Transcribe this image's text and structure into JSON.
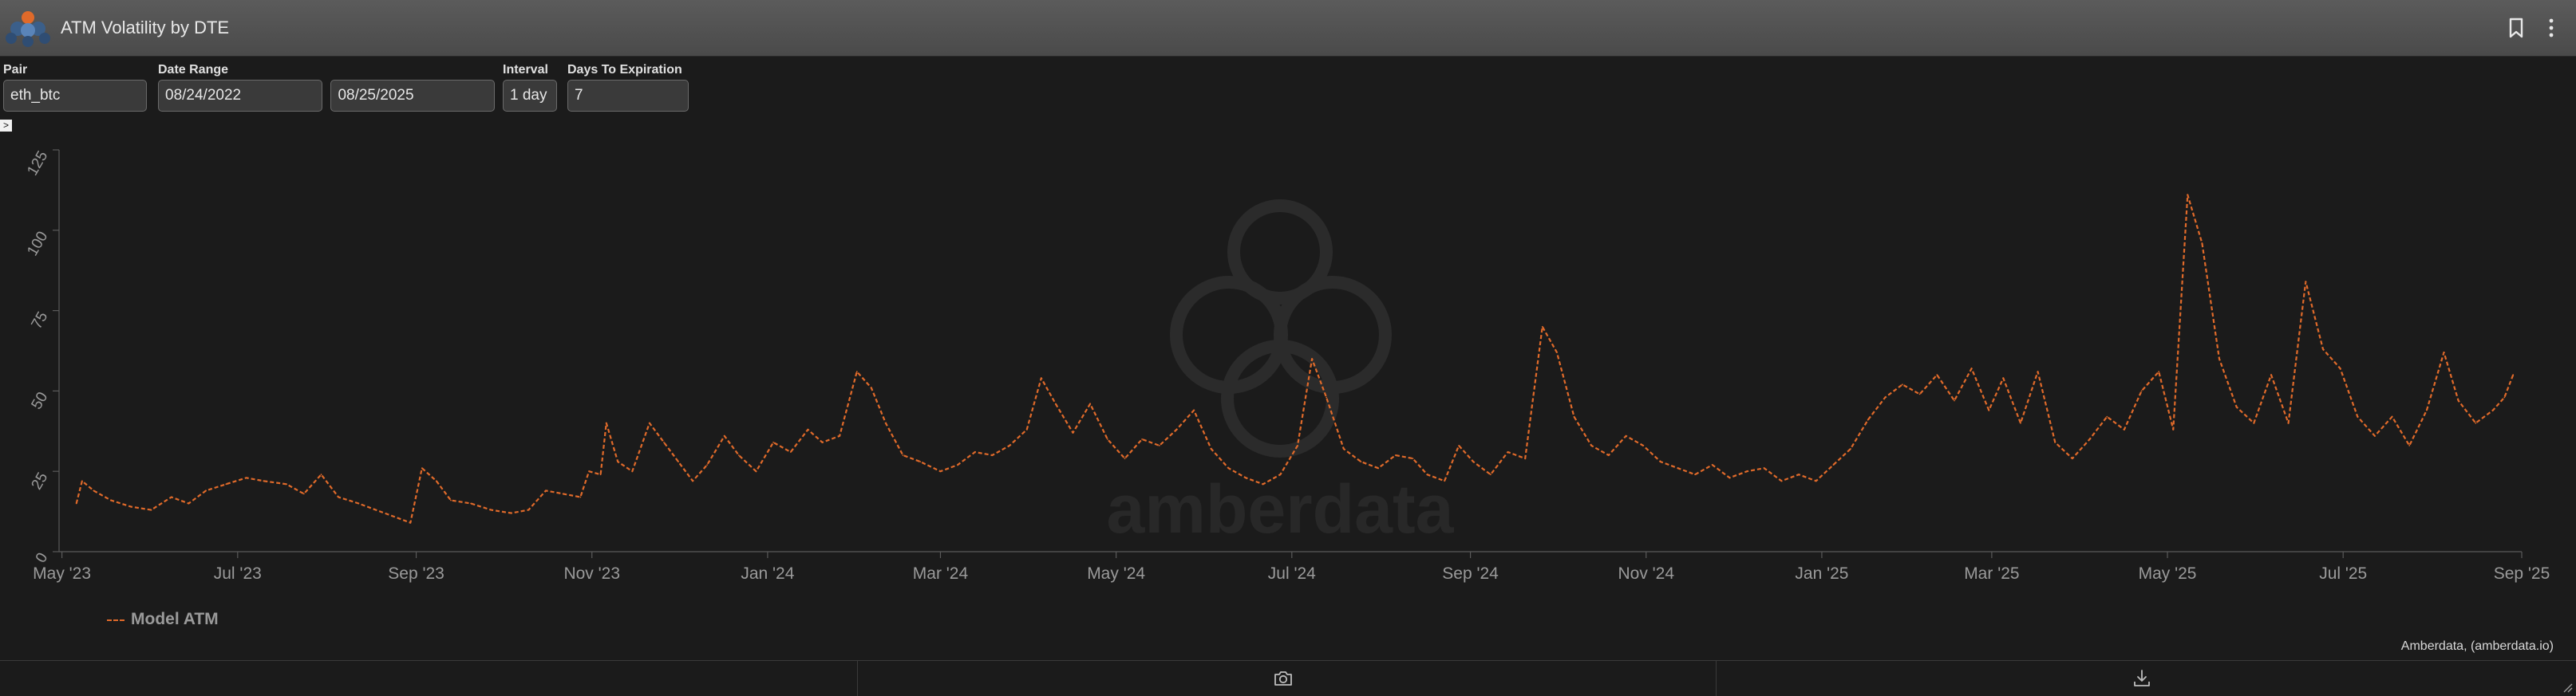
{
  "window": {
    "title": "ATM Volatility by DTE",
    "logo_icon": "amberdata-logo",
    "bookmark_icon": "bookmark-icon",
    "menu_icon": "more-vertical-icon"
  },
  "filters": {
    "pair_label": "Pair",
    "pair_value": "eth_btc",
    "date_range_label": "Date Range",
    "date_start": "08/24/2022",
    "date_end": "08/25/2025",
    "interval_label": "Interval",
    "interval_value": "1 day",
    "dte_label": "Days To Expiration",
    "dte_value": "7"
  },
  "expander_glyph": ">",
  "watermark": "amberdata",
  "credit": "Amberdata, (amberdata.io)",
  "footer": {
    "camera_icon": "camera-icon",
    "download_icon": "download-icon"
  },
  "colors": {
    "series": "#e06a2a",
    "background": "#1b1b1b",
    "titlebar": "#4f4f4f"
  },
  "chart_data": {
    "type": "line",
    "title": "",
    "xlabel": "",
    "ylabel": "",
    "ylim": [
      0,
      125
    ],
    "yticks": [
      0,
      25,
      50,
      75,
      100,
      125
    ],
    "xlim": [
      "2023-04-30",
      "2025-09-01"
    ],
    "xticks": [
      {
        "date": "2023-05-01",
        "label": "May '23"
      },
      {
        "date": "2023-07-01",
        "label": "Jul '23"
      },
      {
        "date": "2023-09-01",
        "label": "Sep '23"
      },
      {
        "date": "2023-11-01",
        "label": "Nov '23"
      },
      {
        "date": "2024-01-01",
        "label": "Jan '24"
      },
      {
        "date": "2024-03-01",
        "label": "Mar '24"
      },
      {
        "date": "2024-05-01",
        "label": "May '24"
      },
      {
        "date": "2024-07-01",
        "label": "Jul '24"
      },
      {
        "date": "2024-09-01",
        "label": "Sep '24"
      },
      {
        "date": "2024-11-01",
        "label": "Nov '24"
      },
      {
        "date": "2025-01-01",
        "label": "Jan '25"
      },
      {
        "date": "2025-03-01",
        "label": "Mar '25"
      },
      {
        "date": "2025-05-01",
        "label": "May '25"
      },
      {
        "date": "2025-07-01",
        "label": "Jul '25"
      },
      {
        "date": "2025-09-01",
        "label": "Sep '25"
      }
    ],
    "grid": false,
    "legend": "bottom-left",
    "series": [
      {
        "name": "Model ATM",
        "style": "dashed",
        "color": "#e06a2a",
        "points": [
          [
            "2023-05-06",
            15
          ],
          [
            "2023-05-08",
            22
          ],
          [
            "2023-05-12",
            19
          ],
          [
            "2023-05-18",
            16
          ],
          [
            "2023-05-25",
            14
          ],
          [
            "2023-06-01",
            13
          ],
          [
            "2023-06-08",
            17
          ],
          [
            "2023-06-14",
            15
          ],
          [
            "2023-06-20",
            19
          ],
          [
            "2023-06-27",
            21
          ],
          [
            "2023-07-04",
            23
          ],
          [
            "2023-07-10",
            22
          ],
          [
            "2023-07-18",
            21
          ],
          [
            "2023-07-24",
            18
          ],
          [
            "2023-07-30",
            24
          ],
          [
            "2023-08-05",
            17
          ],
          [
            "2023-08-12",
            15
          ],
          [
            "2023-08-18",
            13
          ],
          [
            "2023-08-24",
            11
          ],
          [
            "2023-08-30",
            9
          ],
          [
            "2023-09-03",
            26
          ],
          [
            "2023-09-08",
            22
          ],
          [
            "2023-09-13",
            16
          ],
          [
            "2023-09-20",
            15
          ],
          [
            "2023-09-27",
            13
          ],
          [
            "2023-10-04",
            12
          ],
          [
            "2023-10-10",
            13
          ],
          [
            "2023-10-16",
            19
          ],
          [
            "2023-10-22",
            18
          ],
          [
            "2023-10-28",
            17
          ],
          [
            "2023-10-31",
            25
          ],
          [
            "2023-11-04",
            24
          ],
          [
            "2023-11-06",
            40
          ],
          [
            "2023-11-10",
            28
          ],
          [
            "2023-11-15",
            25
          ],
          [
            "2023-11-21",
            40
          ],
          [
            "2023-11-26",
            34
          ],
          [
            "2023-12-01",
            28
          ],
          [
            "2023-12-06",
            22
          ],
          [
            "2023-12-11",
            27
          ],
          [
            "2023-12-17",
            36
          ],
          [
            "2023-12-22",
            30
          ],
          [
            "2023-12-28",
            25
          ],
          [
            "2024-01-03",
            34
          ],
          [
            "2024-01-09",
            31
          ],
          [
            "2024-01-15",
            38
          ],
          [
            "2024-01-20",
            34
          ],
          [
            "2024-01-26",
            36
          ],
          [
            "2024-02-01",
            56
          ],
          [
            "2024-02-06",
            51
          ],
          [
            "2024-02-11",
            40
          ],
          [
            "2024-02-17",
            30
          ],
          [
            "2024-02-23",
            28
          ],
          [
            "2024-03-01",
            25
          ],
          [
            "2024-03-07",
            27
          ],
          [
            "2024-03-13",
            31
          ],
          [
            "2024-03-19",
            30
          ],
          [
            "2024-03-25",
            33
          ],
          [
            "2024-03-31",
            38
          ],
          [
            "2024-04-05",
            54
          ],
          [
            "2024-04-10",
            46
          ],
          [
            "2024-04-16",
            37
          ],
          [
            "2024-04-22",
            46
          ],
          [
            "2024-04-28",
            35
          ],
          [
            "2024-05-04",
            29
          ],
          [
            "2024-05-10",
            35
          ],
          [
            "2024-05-16",
            33
          ],
          [
            "2024-05-22",
            38
          ],
          [
            "2024-05-28",
            44
          ],
          [
            "2024-06-03",
            32
          ],
          [
            "2024-06-09",
            26
          ],
          [
            "2024-06-15",
            23
          ],
          [
            "2024-06-21",
            21
          ],
          [
            "2024-06-27",
            24
          ],
          [
            "2024-07-03",
            33
          ],
          [
            "2024-07-08",
            60
          ],
          [
            "2024-07-13",
            48
          ],
          [
            "2024-07-19",
            32
          ],
          [
            "2024-07-25",
            28
          ],
          [
            "2024-07-31",
            26
          ],
          [
            "2024-08-06",
            30
          ],
          [
            "2024-08-12",
            29
          ],
          [
            "2024-08-17",
            24
          ],
          [
            "2024-08-23",
            22
          ],
          [
            "2024-08-28",
            33
          ],
          [
            "2024-09-02",
            28
          ],
          [
            "2024-09-08",
            24
          ],
          [
            "2024-09-14",
            31
          ],
          [
            "2024-09-20",
            29
          ],
          [
            "2024-09-26",
            70
          ],
          [
            "2024-10-01",
            62
          ],
          [
            "2024-10-07",
            42
          ],
          [
            "2024-10-13",
            33
          ],
          [
            "2024-10-19",
            30
          ],
          [
            "2024-10-25",
            36
          ],
          [
            "2024-10-31",
            33
          ],
          [
            "2024-11-06",
            28
          ],
          [
            "2024-11-12",
            26
          ],
          [
            "2024-11-18",
            24
          ],
          [
            "2024-11-24",
            27
          ],
          [
            "2024-11-30",
            23
          ],
          [
            "2024-12-06",
            25
          ],
          [
            "2024-12-12",
            26
          ],
          [
            "2024-12-18",
            22
          ],
          [
            "2024-12-24",
            24
          ],
          [
            "2024-12-30",
            22
          ],
          [
            "2025-01-05",
            27
          ],
          [
            "2025-01-11",
            32
          ],
          [
            "2025-01-17",
            41
          ],
          [
            "2025-01-23",
            48
          ],
          [
            "2025-01-29",
            52
          ],
          [
            "2025-02-04",
            49
          ],
          [
            "2025-02-10",
            55
          ],
          [
            "2025-02-16",
            47
          ],
          [
            "2025-02-22",
            57
          ],
          [
            "2025-02-28",
            44
          ],
          [
            "2025-03-05",
            54
          ],
          [
            "2025-03-11",
            40
          ],
          [
            "2025-03-17",
            56
          ],
          [
            "2025-03-23",
            34
          ],
          [
            "2025-03-29",
            29
          ],
          [
            "2025-04-04",
            35
          ],
          [
            "2025-04-10",
            42
          ],
          [
            "2025-04-16",
            38
          ],
          [
            "2025-04-22",
            50
          ],
          [
            "2025-04-28",
            56
          ],
          [
            "2025-05-03",
            38
          ],
          [
            "2025-05-08",
            111
          ],
          [
            "2025-05-13",
            96
          ],
          [
            "2025-05-19",
            60
          ],
          [
            "2025-05-25",
            45
          ],
          [
            "2025-05-31",
            40
          ],
          [
            "2025-06-06",
            55
          ],
          [
            "2025-06-12",
            40
          ],
          [
            "2025-06-18",
            84
          ],
          [
            "2025-06-24",
            63
          ],
          [
            "2025-06-30",
            57
          ],
          [
            "2025-07-06",
            42
          ],
          [
            "2025-07-12",
            36
          ],
          [
            "2025-07-18",
            42
          ],
          [
            "2025-07-24",
            33
          ],
          [
            "2025-07-30",
            44
          ],
          [
            "2025-08-05",
            62
          ],
          [
            "2025-08-10",
            47
          ],
          [
            "2025-08-16",
            40
          ],
          [
            "2025-08-22",
            44
          ],
          [
            "2025-08-26",
            48
          ],
          [
            "2025-08-29",
            55
          ]
        ]
      }
    ]
  }
}
